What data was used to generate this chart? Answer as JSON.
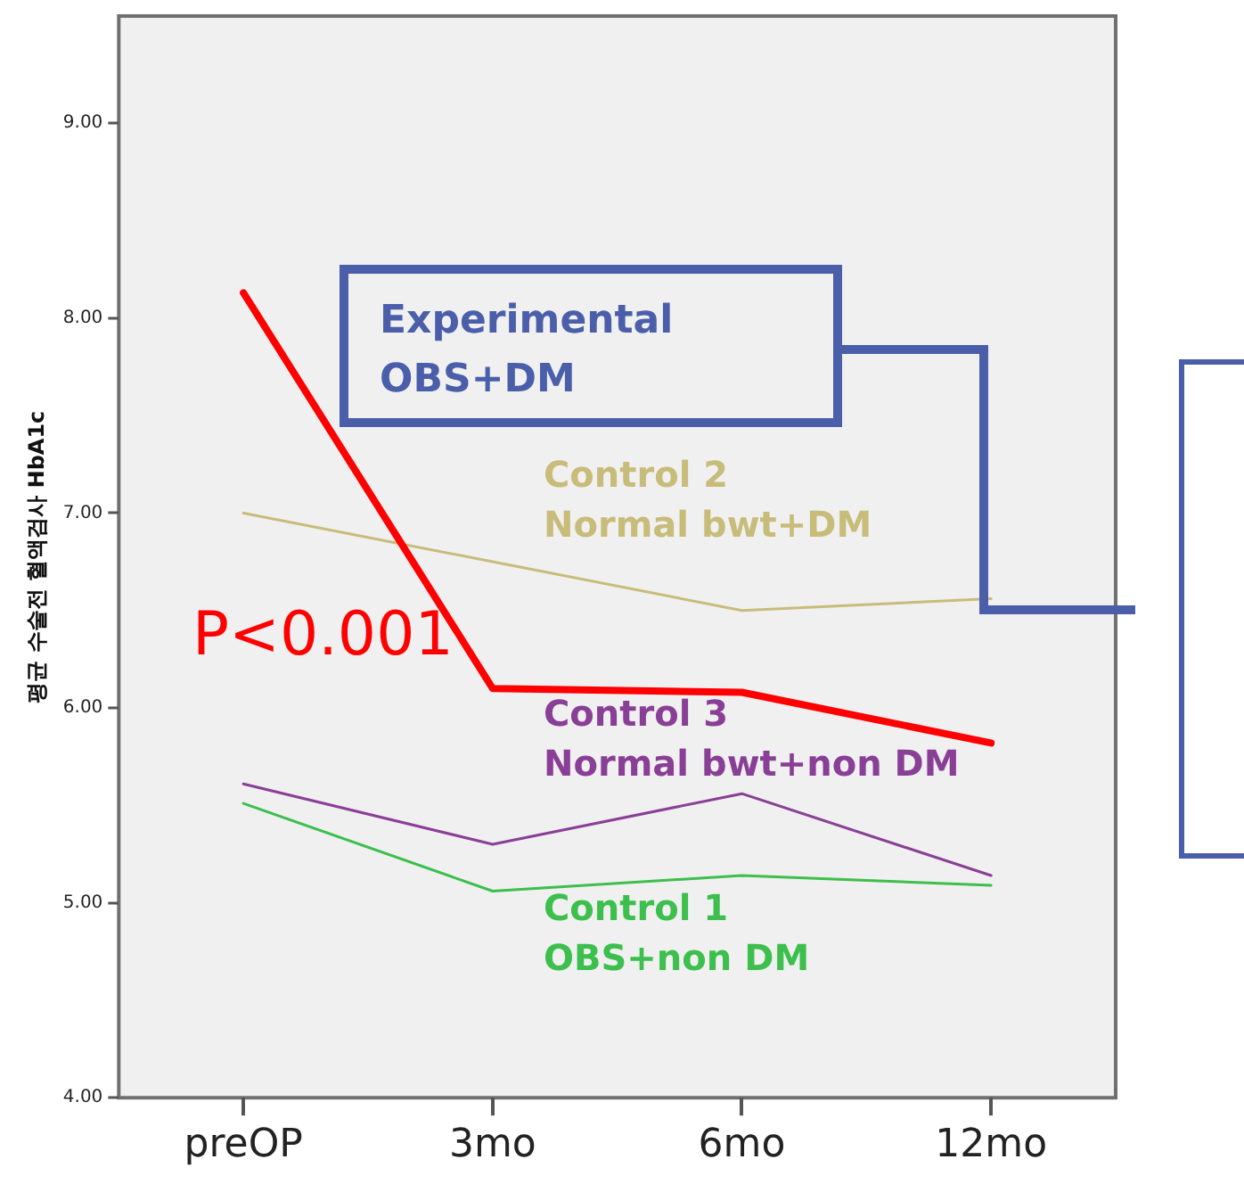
{
  "chart_data": {
    "type": "line",
    "ylabel": "평균 수술전 혈액검사 HbA1c",
    "categories": [
      "preOP",
      "3mo",
      "6mo",
      "12mo"
    ],
    "ylim": [
      4,
      9.55
    ],
    "yticks": [
      {
        "value": 4,
        "label": "4.00"
      },
      {
        "value": 5,
        "label": "5.00"
      },
      {
        "value": 6,
        "label": "6.00"
      },
      {
        "value": 7,
        "label": "7.00"
      },
      {
        "value": 8,
        "label": "8.00"
      },
      {
        "value": 9,
        "label": "9.00"
      }
    ],
    "series": [
      {
        "name": "Experimental\nOBS+DM",
        "color": "#ff0000",
        "values": [
          8.13,
          6.1,
          6.08,
          5.82
        ]
      },
      {
        "name": "Control 2\nNormal bwt+DM",
        "color": "#c8bc7a",
        "values": [
          7.0,
          6.75,
          6.5,
          6.56
        ]
      },
      {
        "name": "Control 3\nNormal bwt+non DM",
        "color": "#8a3f96",
        "values": [
          5.61,
          5.3,
          5.56,
          5.14
        ]
      },
      {
        "name": "Control 1\nOBS+non DM",
        "color": "#3cbf4c",
        "values": [
          5.51,
          5.06,
          5.14,
          5.09
        ]
      }
    ],
    "annotations": [
      "P<0.001"
    ],
    "grid": false,
    "legend": false,
    "marker": "none",
    "line_style": "solid"
  }
}
